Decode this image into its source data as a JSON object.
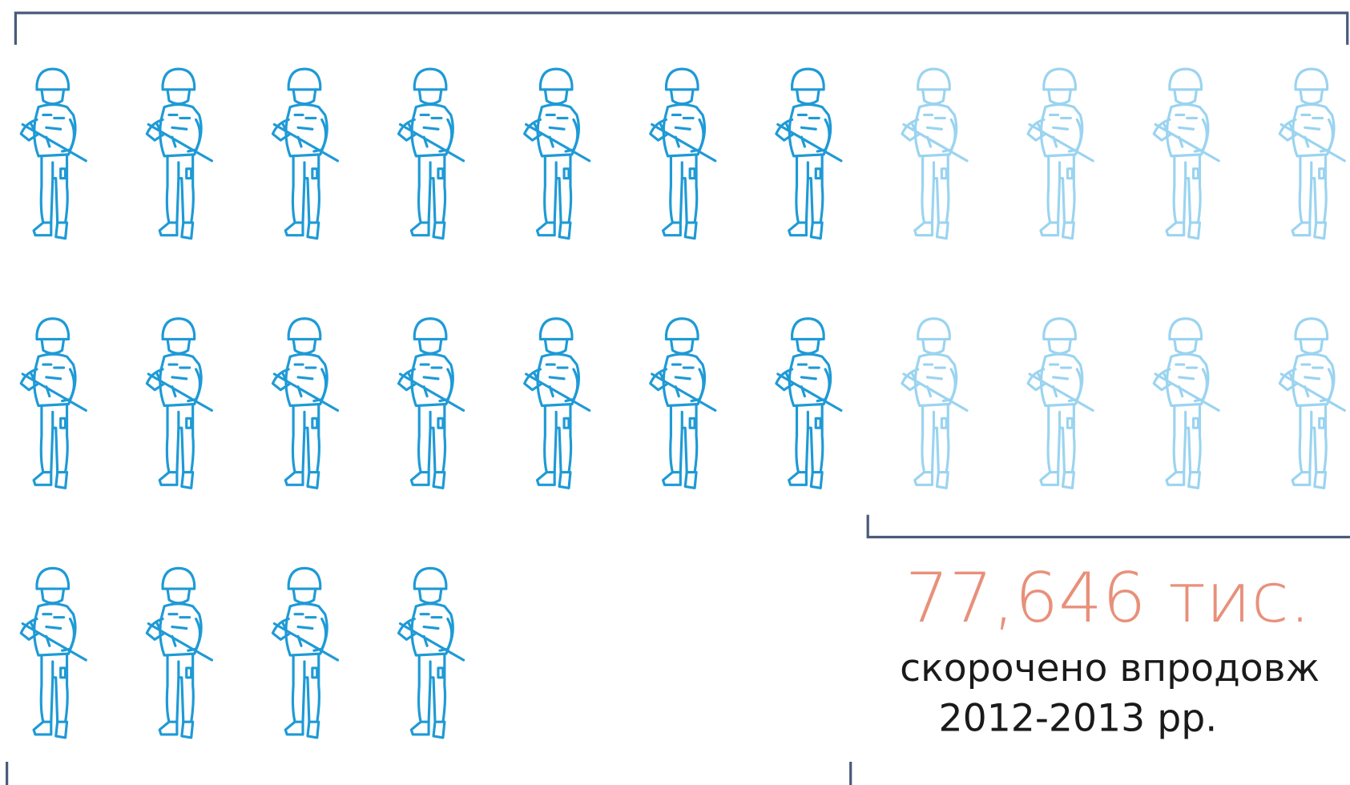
{
  "figure": {
    "total_label": "77,646 тис.",
    "caption": [
      "скорочено впродовж",
      "2012-2013 рр."
    ]
  }
}
